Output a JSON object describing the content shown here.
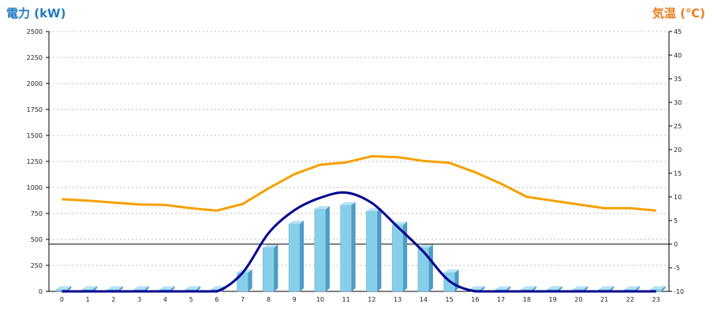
{
  "chart_data": {
    "type": "bar",
    "ylabel": "電力 (kW)",
    "y2label": "気温 (℃)",
    "categories": [
      "0",
      "1",
      "2",
      "3",
      "4",
      "5",
      "6",
      "7",
      "8",
      "9",
      "10",
      "11",
      "12",
      "13",
      "14",
      "15",
      "16",
      "17",
      "18",
      "19",
      "20",
      "21",
      "22",
      "23"
    ],
    "ylim": [
      0,
      2500
    ],
    "yticks": [
      "0",
      "250",
      "500",
      "750",
      "1000",
      "1250",
      "1500",
      "1750",
      "2000",
      "2250",
      "2500"
    ],
    "y2lim": [
      -10,
      45
    ],
    "y2ticks": [
      "-10",
      "-5",
      "0",
      "5",
      "10",
      "15",
      "20",
      "25",
      "30",
      "35",
      "40",
      "45"
    ],
    "grid": true,
    "series": [
      {
        "type": "bar",
        "axis": "left",
        "color": "#87ceeb",
        "values": [
          20,
          20,
          20,
          20,
          20,
          20,
          20,
          180,
          420,
          650,
          790,
          830,
          770,
          640,
          420,
          180,
          20,
          20,
          20,
          20,
          20,
          20,
          20,
          20
        ]
      },
      {
        "type": "line",
        "axis": "left",
        "color": "#000090",
        "values": [
          0,
          0,
          0,
          0,
          0,
          0,
          0,
          180,
          560,
          780,
          900,
          950,
          850,
          620,
          380,
          100,
          0,
          0,
          0,
          0,
          0,
          0,
          0,
          0
        ]
      },
      {
        "type": "line",
        "axis": "right",
        "color": "#f5a000",
        "values": [
          9.5,
          9.2,
          8.8,
          8.4,
          8.3,
          7.6,
          7.1,
          8.5,
          11.8,
          14.8,
          16.8,
          17.3,
          18.6,
          18.4,
          17.6,
          17.2,
          15.2,
          12.8,
          10.0,
          9.2,
          8.4,
          7.6,
          7.6,
          7.1
        ]
      }
    ]
  }
}
